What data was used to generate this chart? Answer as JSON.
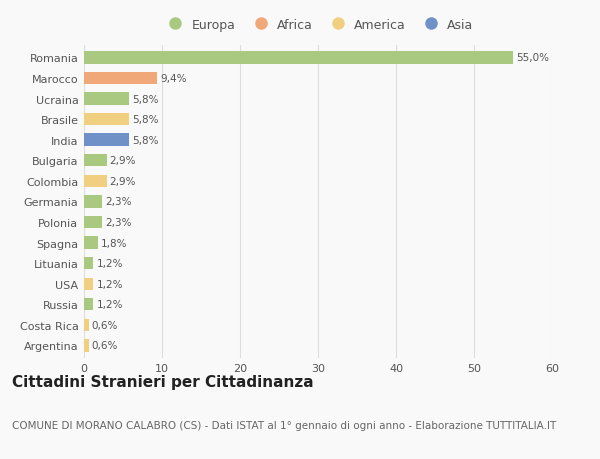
{
  "countries": [
    "Romania",
    "Marocco",
    "Ucraina",
    "Brasile",
    "India",
    "Bulgaria",
    "Colombia",
    "Germania",
    "Polonia",
    "Spagna",
    "Lituania",
    "USA",
    "Russia",
    "Costa Rica",
    "Argentina"
  ],
  "values": [
    55.0,
    9.4,
    5.8,
    5.8,
    5.8,
    2.9,
    2.9,
    2.3,
    2.3,
    1.8,
    1.2,
    1.2,
    1.2,
    0.6,
    0.6
  ],
  "labels": [
    "55,0%",
    "9,4%",
    "5,8%",
    "5,8%",
    "5,8%",
    "2,9%",
    "2,9%",
    "2,3%",
    "2,3%",
    "1,8%",
    "1,2%",
    "1,2%",
    "1,2%",
    "0,6%",
    "0,6%"
  ],
  "continents": [
    "Europa",
    "Africa",
    "Europa",
    "America",
    "Asia",
    "Europa",
    "America",
    "Europa",
    "Europa",
    "Europa",
    "Europa",
    "America",
    "Europa",
    "America",
    "America"
  ],
  "continent_colors": {
    "Europa": "#a8c97f",
    "Africa": "#f0a878",
    "America": "#f0d080",
    "Asia": "#7090c8"
  },
  "legend_order": [
    "Europa",
    "Africa",
    "America",
    "Asia"
  ],
  "title": "Cittadini Stranieri per Cittadinanza",
  "subtitle": "COMUNE DI MORANO CALABRO (CS) - Dati ISTAT al 1° gennaio di ogni anno - Elaborazione TUTTITALIA.IT",
  "xlim": [
    0,
    60
  ],
  "xticks": [
    0,
    10,
    20,
    30,
    40,
    50,
    60
  ],
  "background_color": "#f9f9f9",
  "grid_color": "#dddddd",
  "bar_height": 0.6,
  "title_fontsize": 11,
  "subtitle_fontsize": 7.5,
  "label_fontsize": 7.5,
  "tick_fontsize": 8,
  "legend_fontsize": 9
}
